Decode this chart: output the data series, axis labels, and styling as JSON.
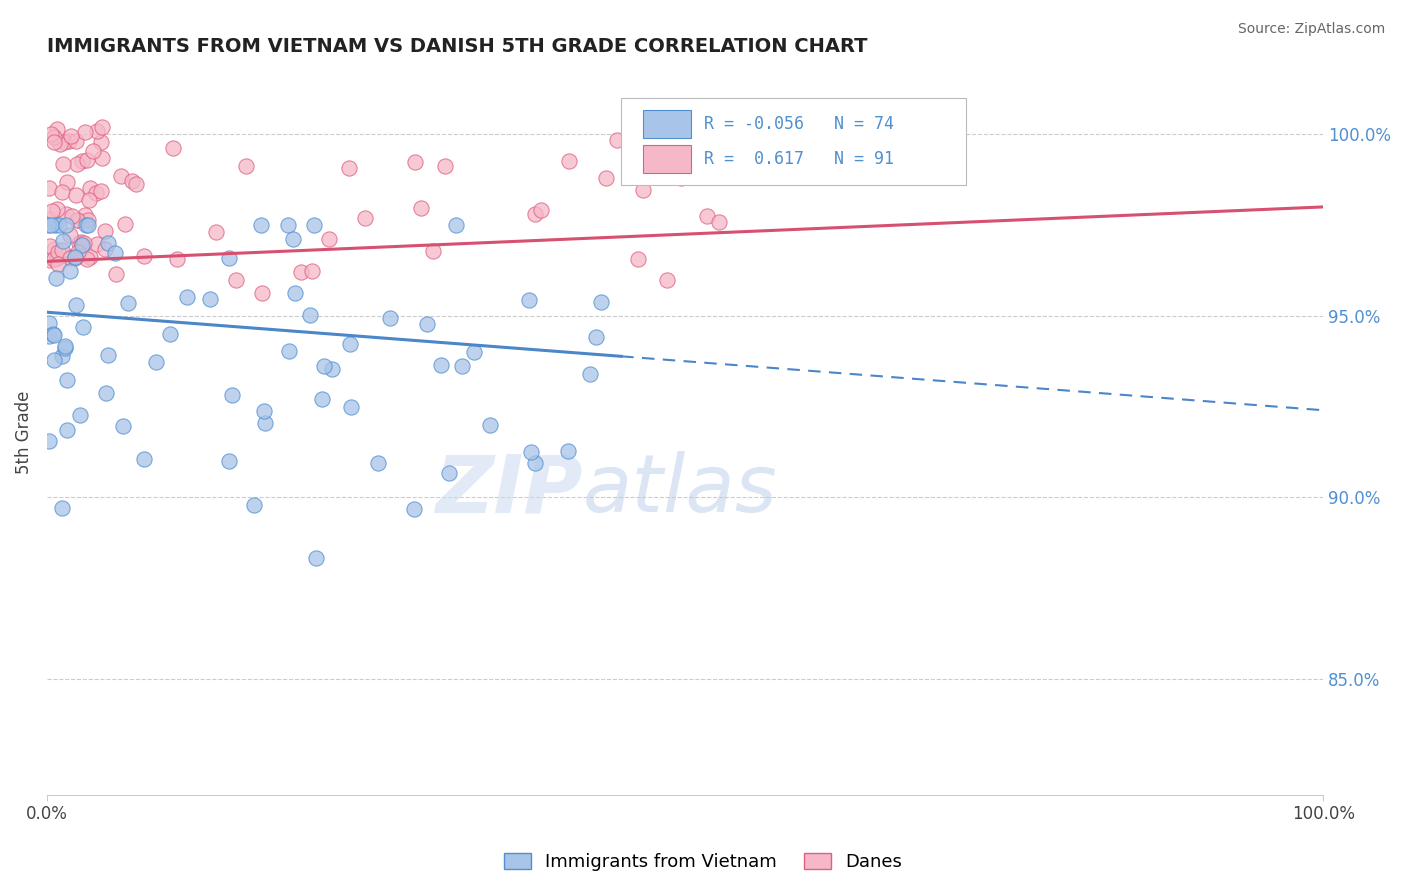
{
  "title": "IMMIGRANTS FROM VIETNAM VS DANISH 5TH GRADE CORRELATION CHART",
  "source": "Source: ZipAtlas.com",
  "ylabel": "5th Grade",
  "xlim": [
    0.0,
    1.0
  ],
  "ylim": [
    0.818,
    1.018
  ],
  "yticks": [
    0.85,
    0.9,
    0.95,
    1.0
  ],
  "ytick_labels": [
    "85.0%",
    "90.0%",
    "95.0%",
    "100.0%"
  ],
  "legend_blue_R": "-0.056",
  "legend_blue_N": "74",
  "legend_pink_R": "0.617",
  "legend_pink_N": "91",
  "legend_blue_label": "Immigrants from Vietnam",
  "legend_pink_label": "Danes",
  "blue_fill": "#a8c4e8",
  "pink_fill": "#f5b8c8",
  "blue_edge": "#5090d0",
  "pink_edge": "#e06080",
  "blue_line_color": "#4a86c8",
  "pink_line_color": "#d85070",
  "watermark_zip_color": "#d8e8f8",
  "watermark_atlas_color": "#c8d8f0",
  "blue_trend_y0": 0.951,
  "blue_trend_y1": 0.924,
  "blue_solid_xend": 0.45,
  "pink_trend_y0": 0.965,
  "pink_trend_y1": 0.98,
  "grid_color": "#cccccc",
  "title_color": "#222222",
  "source_color": "#666666",
  "tick_label_color": "#5090d0"
}
